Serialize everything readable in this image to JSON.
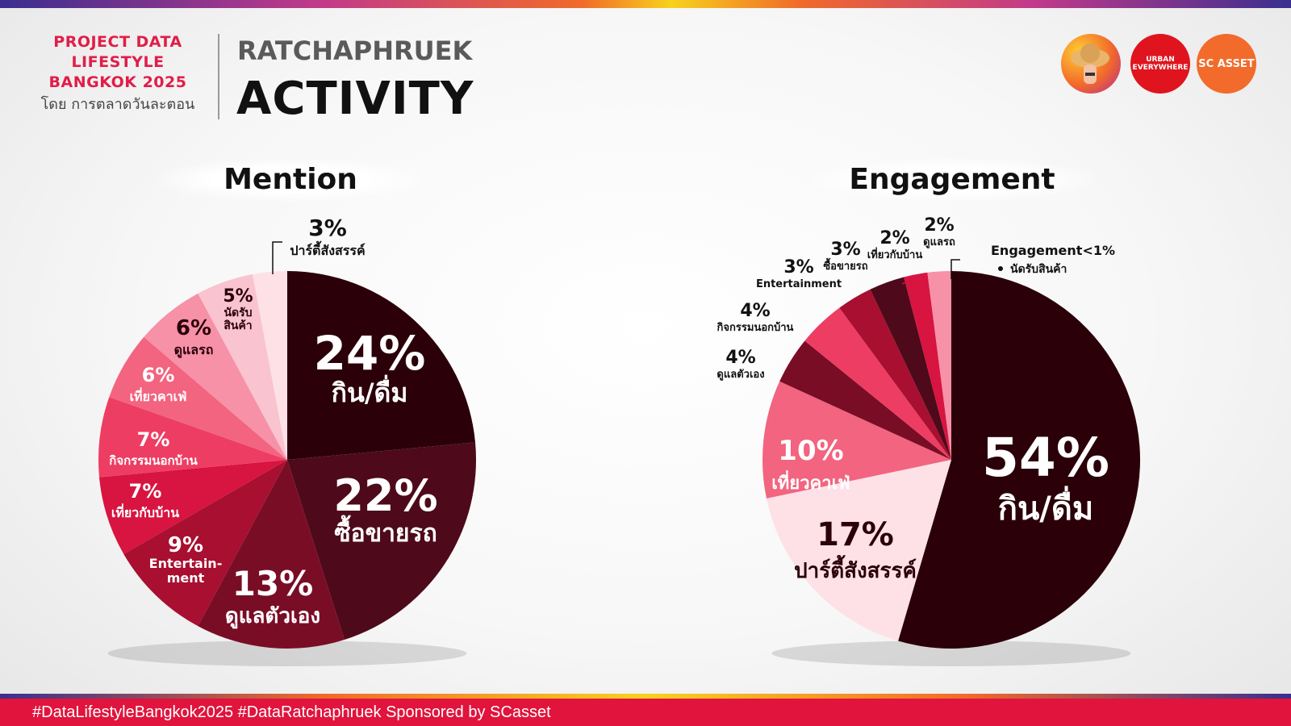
{
  "header": {
    "brand_line1": "PROJECT DATA",
    "brand_line2": "LIFESTYLE",
    "brand_line3": "BANGKOK 2025",
    "brand_by": "โดย การตลาดวันละตอน",
    "area": "RATCHAPHRUEK",
    "title": "ACTIVITY",
    "logo_urban": "URBAN EVERYWHERE",
    "logo_sc": "SC ASSET"
  },
  "footer": {
    "text": "#DataLifestyleBangkok2025 #DataRatchaphruek Sponsored by SCasset"
  },
  "colors": {
    "accent": "#e0143c"
  },
  "chart_data": [
    {
      "type": "pie",
      "title": "Mention",
      "unit": "%",
      "slices": [
        {
          "label": "กิน/ดื่ม",
          "value": 24,
          "color": "#2b0009"
        },
        {
          "label": "ซื้อขายรถ",
          "value": 22,
          "color": "#4e0a1a"
        },
        {
          "label": "ดูแลตัวเอง",
          "value": 13,
          "color": "#7a0d26"
        },
        {
          "label": "Entertain-ment",
          "value": 9,
          "color": "#a80f30"
        },
        {
          "label": "เที่ยวกับบ้าน",
          "value": 7,
          "color": "#d81440"
        },
        {
          "label": "กิจกรรมนอกบ้าน",
          "value": 7,
          "color": "#ee3d62"
        },
        {
          "label": "เที่ยวคาเฟ่",
          "value": 6,
          "color": "#f2647f"
        },
        {
          "label": "ดูแลรถ",
          "value": 6,
          "color": "#f691a8"
        },
        {
          "label": "นัดรับสินค้า",
          "value": 5,
          "color": "#f9c3cf"
        },
        {
          "label": "ปาร์ตี้สังสรรค์",
          "value": 3,
          "color": "#fde1e7"
        }
      ]
    },
    {
      "type": "pie",
      "title": "Engagement",
      "unit": "%",
      "note": "Engagement<1%",
      "note_item": "นัดรับสินค้า",
      "slices": [
        {
          "label": "กิน/ดื่ม",
          "value": 54,
          "color": "#2b0009"
        },
        {
          "label": "ปาร์ตี้สังสรรค์",
          "value": 17,
          "color": "#fde1e7"
        },
        {
          "label": "เที่ยวคาเฟ่",
          "value": 10,
          "color": "#f2647f"
        },
        {
          "label": "ดูแลตัวเอง",
          "value": 4,
          "color": "#7a0d26"
        },
        {
          "label": "กิจกรรมนอกบ้าน",
          "value": 4,
          "color": "#ee3d62"
        },
        {
          "label": "Entertainment",
          "value": 3,
          "color": "#a80f30"
        },
        {
          "label": "ซื้อขายรถ",
          "value": 3,
          "color": "#4e0a1a"
        },
        {
          "label": "เที่ยวกับบ้าน",
          "value": 2,
          "color": "#d81440"
        },
        {
          "label": "ดูแลรถ",
          "value": 2,
          "color": "#f691a8"
        }
      ]
    }
  ]
}
